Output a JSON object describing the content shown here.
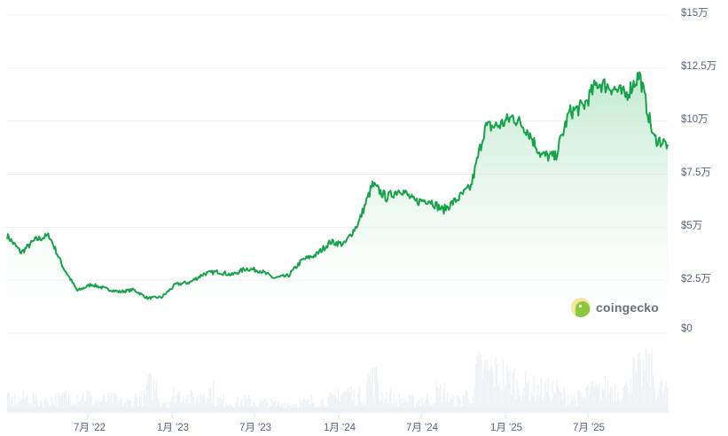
{
  "chart_data": {
    "type": "area",
    "title": "",
    "xlabel": "",
    "ylabel": "",
    "currency_unit": "万 (10,000 USD)",
    "ylim": [
      0,
      150000
    ],
    "grid": true,
    "legend": "none",
    "y_ticks": [
      "$15万",
      "$12.5万",
      "$10万",
      "$7.5万",
      "$5万",
      "$2.5万",
      "$0"
    ],
    "y_tick_values": [
      150000,
      125000,
      100000,
      75000,
      50000,
      25000,
      0
    ],
    "x_ticks": [
      "7月 '22",
      "1月 '23",
      "7月 '23",
      "1月 '24",
      "7月 '24",
      "1月 '25",
      "7月 '25"
    ],
    "series": [
      {
        "name": "Price",
        "color": "#16a34a",
        "x": [
          "2022-01",
          "2022-02",
          "2022-03",
          "2022-04",
          "2022-05",
          "2022-06",
          "2022-07",
          "2022-08",
          "2022-09",
          "2022-10",
          "2022-11",
          "2022-12",
          "2023-01",
          "2023-02",
          "2023-03",
          "2023-04",
          "2023-05",
          "2023-06",
          "2023-07",
          "2023-08",
          "2023-09",
          "2023-10",
          "2023-11",
          "2023-12",
          "2024-01",
          "2024-02",
          "2024-03",
          "2024-04",
          "2024-05",
          "2024-06",
          "2024-07",
          "2024-08",
          "2024-09",
          "2024-10",
          "2024-11",
          "2024-12",
          "2025-01",
          "2025-02",
          "2025-03",
          "2025-04",
          "2025-05",
          "2025-06",
          "2025-07",
          "2025-08",
          "2025-09",
          "2025-10",
          "2025-11",
          "2025-12"
        ],
        "values": [
          46000,
          38000,
          44000,
          46000,
          31000,
          20000,
          23000,
          21000,
          19500,
          20500,
          16500,
          17000,
          23000,
          24000,
          28000,
          29000,
          27500,
          30500,
          29500,
          26000,
          27000,
          34500,
          37000,
          43000,
          42000,
          52000,
          70000,
          64000,
          68000,
          62000,
          63000,
          58000,
          63000,
          69000,
          97000,
          98000,
          102000,
          96000,
          84000,
          83000,
          104000,
          107000,
          118000,
          116000,
          112000,
          122000,
          92000,
          89000
        ]
      },
      {
        "name": "Volume",
        "color": "#eef1f4",
        "values": [
          0.22,
          0.25,
          0.2,
          0.23,
          0.28,
          0.3,
          0.2,
          0.22,
          0.18,
          0.25,
          0.45,
          0.2,
          0.32,
          0.25,
          0.35,
          0.22,
          0.18,
          0.2,
          0.17,
          0.15,
          0.15,
          0.17,
          0.2,
          0.22,
          0.35,
          0.28,
          0.55,
          0.3,
          0.22,
          0.2,
          0.22,
          0.35,
          0.2,
          0.3,
          0.7,
          0.65,
          0.55,
          0.45,
          0.4,
          0.38,
          0.3,
          0.25,
          0.35,
          0.42,
          0.38,
          0.65,
          0.7,
          0.4
        ]
      }
    ]
  },
  "watermark": {
    "brand": "coingecko"
  },
  "colors": {
    "line": "#16a34a",
    "area_top": "#c8ecd4",
    "grid": "#eceff1",
    "axis_text": "#58667e",
    "volume": "#eef1f4"
  }
}
